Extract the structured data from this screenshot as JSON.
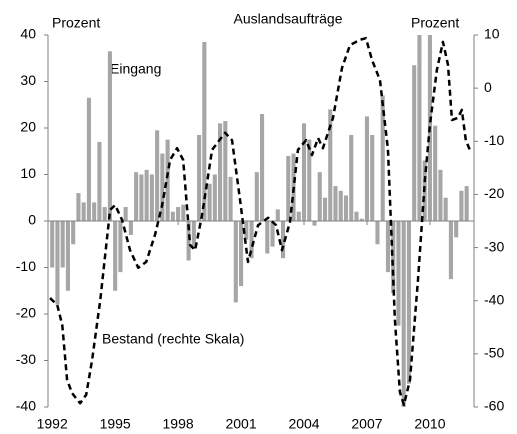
{
  "chart_data": {
    "type": "bar",
    "title": "Auslandsaufträge",
    "ylabel": "Prozent",
    "y2label": "Prozent",
    "xlim": [
      1991.8,
      2012.1
    ],
    "xticks": [
      1992,
      1995,
      1998,
      2001,
      2004,
      2007,
      2010
    ],
    "ylim": [
      -40,
      40
    ],
    "yticks": [
      -40,
      -30,
      -20,
      -10,
      0,
      10,
      20,
      30,
      40
    ],
    "y2lim": [
      -60,
      10
    ],
    "y2ticks": [
      -60,
      -50,
      -40,
      -30,
      -20,
      -10,
      0,
      10
    ],
    "series": [
      {
        "name": "Eingang",
        "type": "bar",
        "color": "#a6a6a6",
        "x": [
          1992,
          1992.25,
          1992.5,
          1992.75,
          1993,
          1993.25,
          1993.5,
          1993.75,
          1994,
          1994.25,
          1994.5,
          1994.75,
          1995,
          1995.25,
          1995.5,
          1995.75,
          1996,
          1996.25,
          1996.5,
          1996.75,
          1997,
          1997.25,
          1997.5,
          1997.75,
          1998,
          1998.25,
          1998.5,
          1998.75,
          1999,
          1999.25,
          1999.5,
          1999.75,
          2000,
          2000.25,
          2000.5,
          2000.75,
          2001,
          2001.25,
          2001.5,
          2001.75,
          2002,
          2002.25,
          2002.5,
          2002.75,
          2003,
          2003.25,
          2003.5,
          2003.75,
          2004,
          2004.25,
          2004.5,
          2004.75,
          2005,
          2005.25,
          2005.5,
          2005.75,
          2006,
          2006.25,
          2006.5,
          2006.75,
          2007,
          2007.25,
          2007.5,
          2007.75,
          2008,
          2008.25,
          2008.5,
          2008.75,
          2009,
          2009.25,
          2009.5,
          2009.75,
          2010,
          2010.25,
          2010.5,
          2010.75,
          2011,
          2011.25,
          2011.5,
          2011.75
        ],
        "values": [
          -10,
          -18,
          -10,
          -15,
          -5,
          6,
          4,
          26.5,
          4,
          17,
          3,
          36.5,
          -15,
          -11,
          3,
          -3,
          10.5,
          10,
          11,
          10,
          19.5,
          14.5,
          17.5,
          2,
          3,
          3.5,
          -8.5,
          -6,
          18.5,
          38.5,
          8,
          10,
          21,
          21.5,
          9.5,
          -17.5,
          -14,
          -4,
          -8,
          10.5,
          23,
          -7,
          -5.5,
          2.5,
          -8,
          14,
          14.5,
          2,
          21,
          17.5,
          -1,
          10.5,
          5,
          24,
          7.5,
          6.5,
          5.5,
          18.5,
          2,
          0.5,
          22.5,
          18.5,
          -5,
          27,
          -11,
          -15.5,
          -22.5,
          -40,
          -35,
          33.5,
          40,
          13,
          40,
          20.5,
          11,
          5,
          -12.5,
          -3.5,
          6.5,
          7.5
        ]
      },
      {
        "name": "Bestand (rechte Skala)",
        "type": "line",
        "axis": "y2",
        "color": "#000000",
        "x": [
          1991.9,
          1992.24,
          1992.48,
          1992.71,
          1992.95,
          1993.33,
          1993.62,
          1993.9,
          1994.29,
          1994.76,
          1995.0,
          1995.33,
          1995.71,
          1996.1,
          1996.48,
          1996.9,
          1997.24,
          1997.62,
          1997.95,
          1998.24,
          1998.57,
          1998.81,
          1999.14,
          1999.62,
          2000.24,
          2000.57,
          2000.95,
          2001.33,
          2001.81,
          2002.29,
          2002.67,
          2002.95,
          2003.33,
          2003.71,
          2004.1,
          2004.38,
          2004.67,
          2004.9,
          2005.38,
          2005.81,
          2006.19,
          2006.67,
          2006.95,
          2007.24,
          2007.62,
          2008.0,
          2008.33,
          2008.57,
          2008.76,
          2009.05,
          2009.43,
          2009.76,
          2010.0,
          2010.33,
          2010.62,
          2010.86,
          2011.05,
          2011.33,
          2011.52,
          2011.71,
          2011.9
        ],
        "values": [
          -39.5,
          -40.8,
          -44.6,
          -54.9,
          -57.4,
          -59.3,
          -57.7,
          -51.2,
          -39.9,
          -22.9,
          -22,
          -24.8,
          -30.5,
          -33.8,
          -32.7,
          -27.6,
          -22,
          -13.5,
          -11.3,
          -13.5,
          -29.5,
          -30.5,
          -23.9,
          -11.6,
          -8.4,
          -9.8,
          -21,
          -32.7,
          -25.8,
          -24.4,
          -25.8,
          -30.5,
          -25.2,
          -11.6,
          -9.8,
          -12.6,
          -9.4,
          -11.3,
          -5.6,
          3.8,
          8.1,
          9.1,
          9.4,
          5.3,
          1.5,
          -11.6,
          -43.6,
          -57.2,
          -59.6,
          -54.9,
          -36.1,
          -17.3,
          -6.9,
          3.4,
          8.7,
          4.4,
          -6,
          -5.6,
          -4.1,
          -9.8,
          -11.6
        ]
      }
    ]
  }
}
